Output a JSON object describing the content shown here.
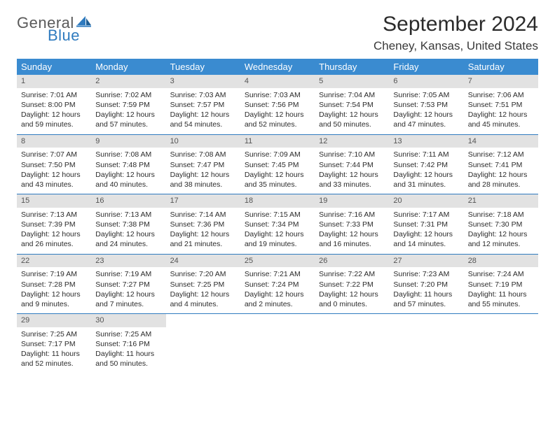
{
  "logo": {
    "text1": "General",
    "text2": "Blue",
    "sail_color": "#2f7bbf"
  },
  "title": "September 2024",
  "location": "Cheney, Kansas, United States",
  "colors": {
    "header_bg": "#3a8bd0",
    "header_text": "#ffffff",
    "daynum_bg": "#e2e2e2",
    "row_border": "#2f7bbf",
    "body_text": "#2b2b2b"
  },
  "weekdays": [
    "Sunday",
    "Monday",
    "Tuesday",
    "Wednesday",
    "Thursday",
    "Friday",
    "Saturday"
  ],
  "weeks": [
    [
      {
        "n": "1",
        "sunrise": "7:01 AM",
        "sunset": "8:00 PM",
        "dl": "12 hours and 59 minutes."
      },
      {
        "n": "2",
        "sunrise": "7:02 AM",
        "sunset": "7:59 PM",
        "dl": "12 hours and 57 minutes."
      },
      {
        "n": "3",
        "sunrise": "7:03 AM",
        "sunset": "7:57 PM",
        "dl": "12 hours and 54 minutes."
      },
      {
        "n": "4",
        "sunrise": "7:03 AM",
        "sunset": "7:56 PM",
        "dl": "12 hours and 52 minutes."
      },
      {
        "n": "5",
        "sunrise": "7:04 AM",
        "sunset": "7:54 PM",
        "dl": "12 hours and 50 minutes."
      },
      {
        "n": "6",
        "sunrise": "7:05 AM",
        "sunset": "7:53 PM",
        "dl": "12 hours and 47 minutes."
      },
      {
        "n": "7",
        "sunrise": "7:06 AM",
        "sunset": "7:51 PM",
        "dl": "12 hours and 45 minutes."
      }
    ],
    [
      {
        "n": "8",
        "sunrise": "7:07 AM",
        "sunset": "7:50 PM",
        "dl": "12 hours and 43 minutes."
      },
      {
        "n": "9",
        "sunrise": "7:08 AM",
        "sunset": "7:48 PM",
        "dl": "12 hours and 40 minutes."
      },
      {
        "n": "10",
        "sunrise": "7:08 AM",
        "sunset": "7:47 PM",
        "dl": "12 hours and 38 minutes."
      },
      {
        "n": "11",
        "sunrise": "7:09 AM",
        "sunset": "7:45 PM",
        "dl": "12 hours and 35 minutes."
      },
      {
        "n": "12",
        "sunrise": "7:10 AM",
        "sunset": "7:44 PM",
        "dl": "12 hours and 33 minutes."
      },
      {
        "n": "13",
        "sunrise": "7:11 AM",
        "sunset": "7:42 PM",
        "dl": "12 hours and 31 minutes."
      },
      {
        "n": "14",
        "sunrise": "7:12 AM",
        "sunset": "7:41 PM",
        "dl": "12 hours and 28 minutes."
      }
    ],
    [
      {
        "n": "15",
        "sunrise": "7:13 AM",
        "sunset": "7:39 PM",
        "dl": "12 hours and 26 minutes."
      },
      {
        "n": "16",
        "sunrise": "7:13 AM",
        "sunset": "7:38 PM",
        "dl": "12 hours and 24 minutes."
      },
      {
        "n": "17",
        "sunrise": "7:14 AM",
        "sunset": "7:36 PM",
        "dl": "12 hours and 21 minutes."
      },
      {
        "n": "18",
        "sunrise": "7:15 AM",
        "sunset": "7:34 PM",
        "dl": "12 hours and 19 minutes."
      },
      {
        "n": "19",
        "sunrise": "7:16 AM",
        "sunset": "7:33 PM",
        "dl": "12 hours and 16 minutes."
      },
      {
        "n": "20",
        "sunrise": "7:17 AM",
        "sunset": "7:31 PM",
        "dl": "12 hours and 14 minutes."
      },
      {
        "n": "21",
        "sunrise": "7:18 AM",
        "sunset": "7:30 PM",
        "dl": "12 hours and 12 minutes."
      }
    ],
    [
      {
        "n": "22",
        "sunrise": "7:19 AM",
        "sunset": "7:28 PM",
        "dl": "12 hours and 9 minutes."
      },
      {
        "n": "23",
        "sunrise": "7:19 AM",
        "sunset": "7:27 PM",
        "dl": "12 hours and 7 minutes."
      },
      {
        "n": "24",
        "sunrise": "7:20 AM",
        "sunset": "7:25 PM",
        "dl": "12 hours and 4 minutes."
      },
      {
        "n": "25",
        "sunrise": "7:21 AM",
        "sunset": "7:24 PM",
        "dl": "12 hours and 2 minutes."
      },
      {
        "n": "26",
        "sunrise": "7:22 AM",
        "sunset": "7:22 PM",
        "dl": "12 hours and 0 minutes."
      },
      {
        "n": "27",
        "sunrise": "7:23 AM",
        "sunset": "7:20 PM",
        "dl": "11 hours and 57 minutes."
      },
      {
        "n": "28",
        "sunrise": "7:24 AM",
        "sunset": "7:19 PM",
        "dl": "11 hours and 55 minutes."
      }
    ],
    [
      {
        "n": "29",
        "sunrise": "7:25 AM",
        "sunset": "7:17 PM",
        "dl": "11 hours and 52 minutes."
      },
      {
        "n": "30",
        "sunrise": "7:25 AM",
        "sunset": "7:16 PM",
        "dl": "11 hours and 50 minutes."
      },
      null,
      null,
      null,
      null,
      null
    ]
  ]
}
